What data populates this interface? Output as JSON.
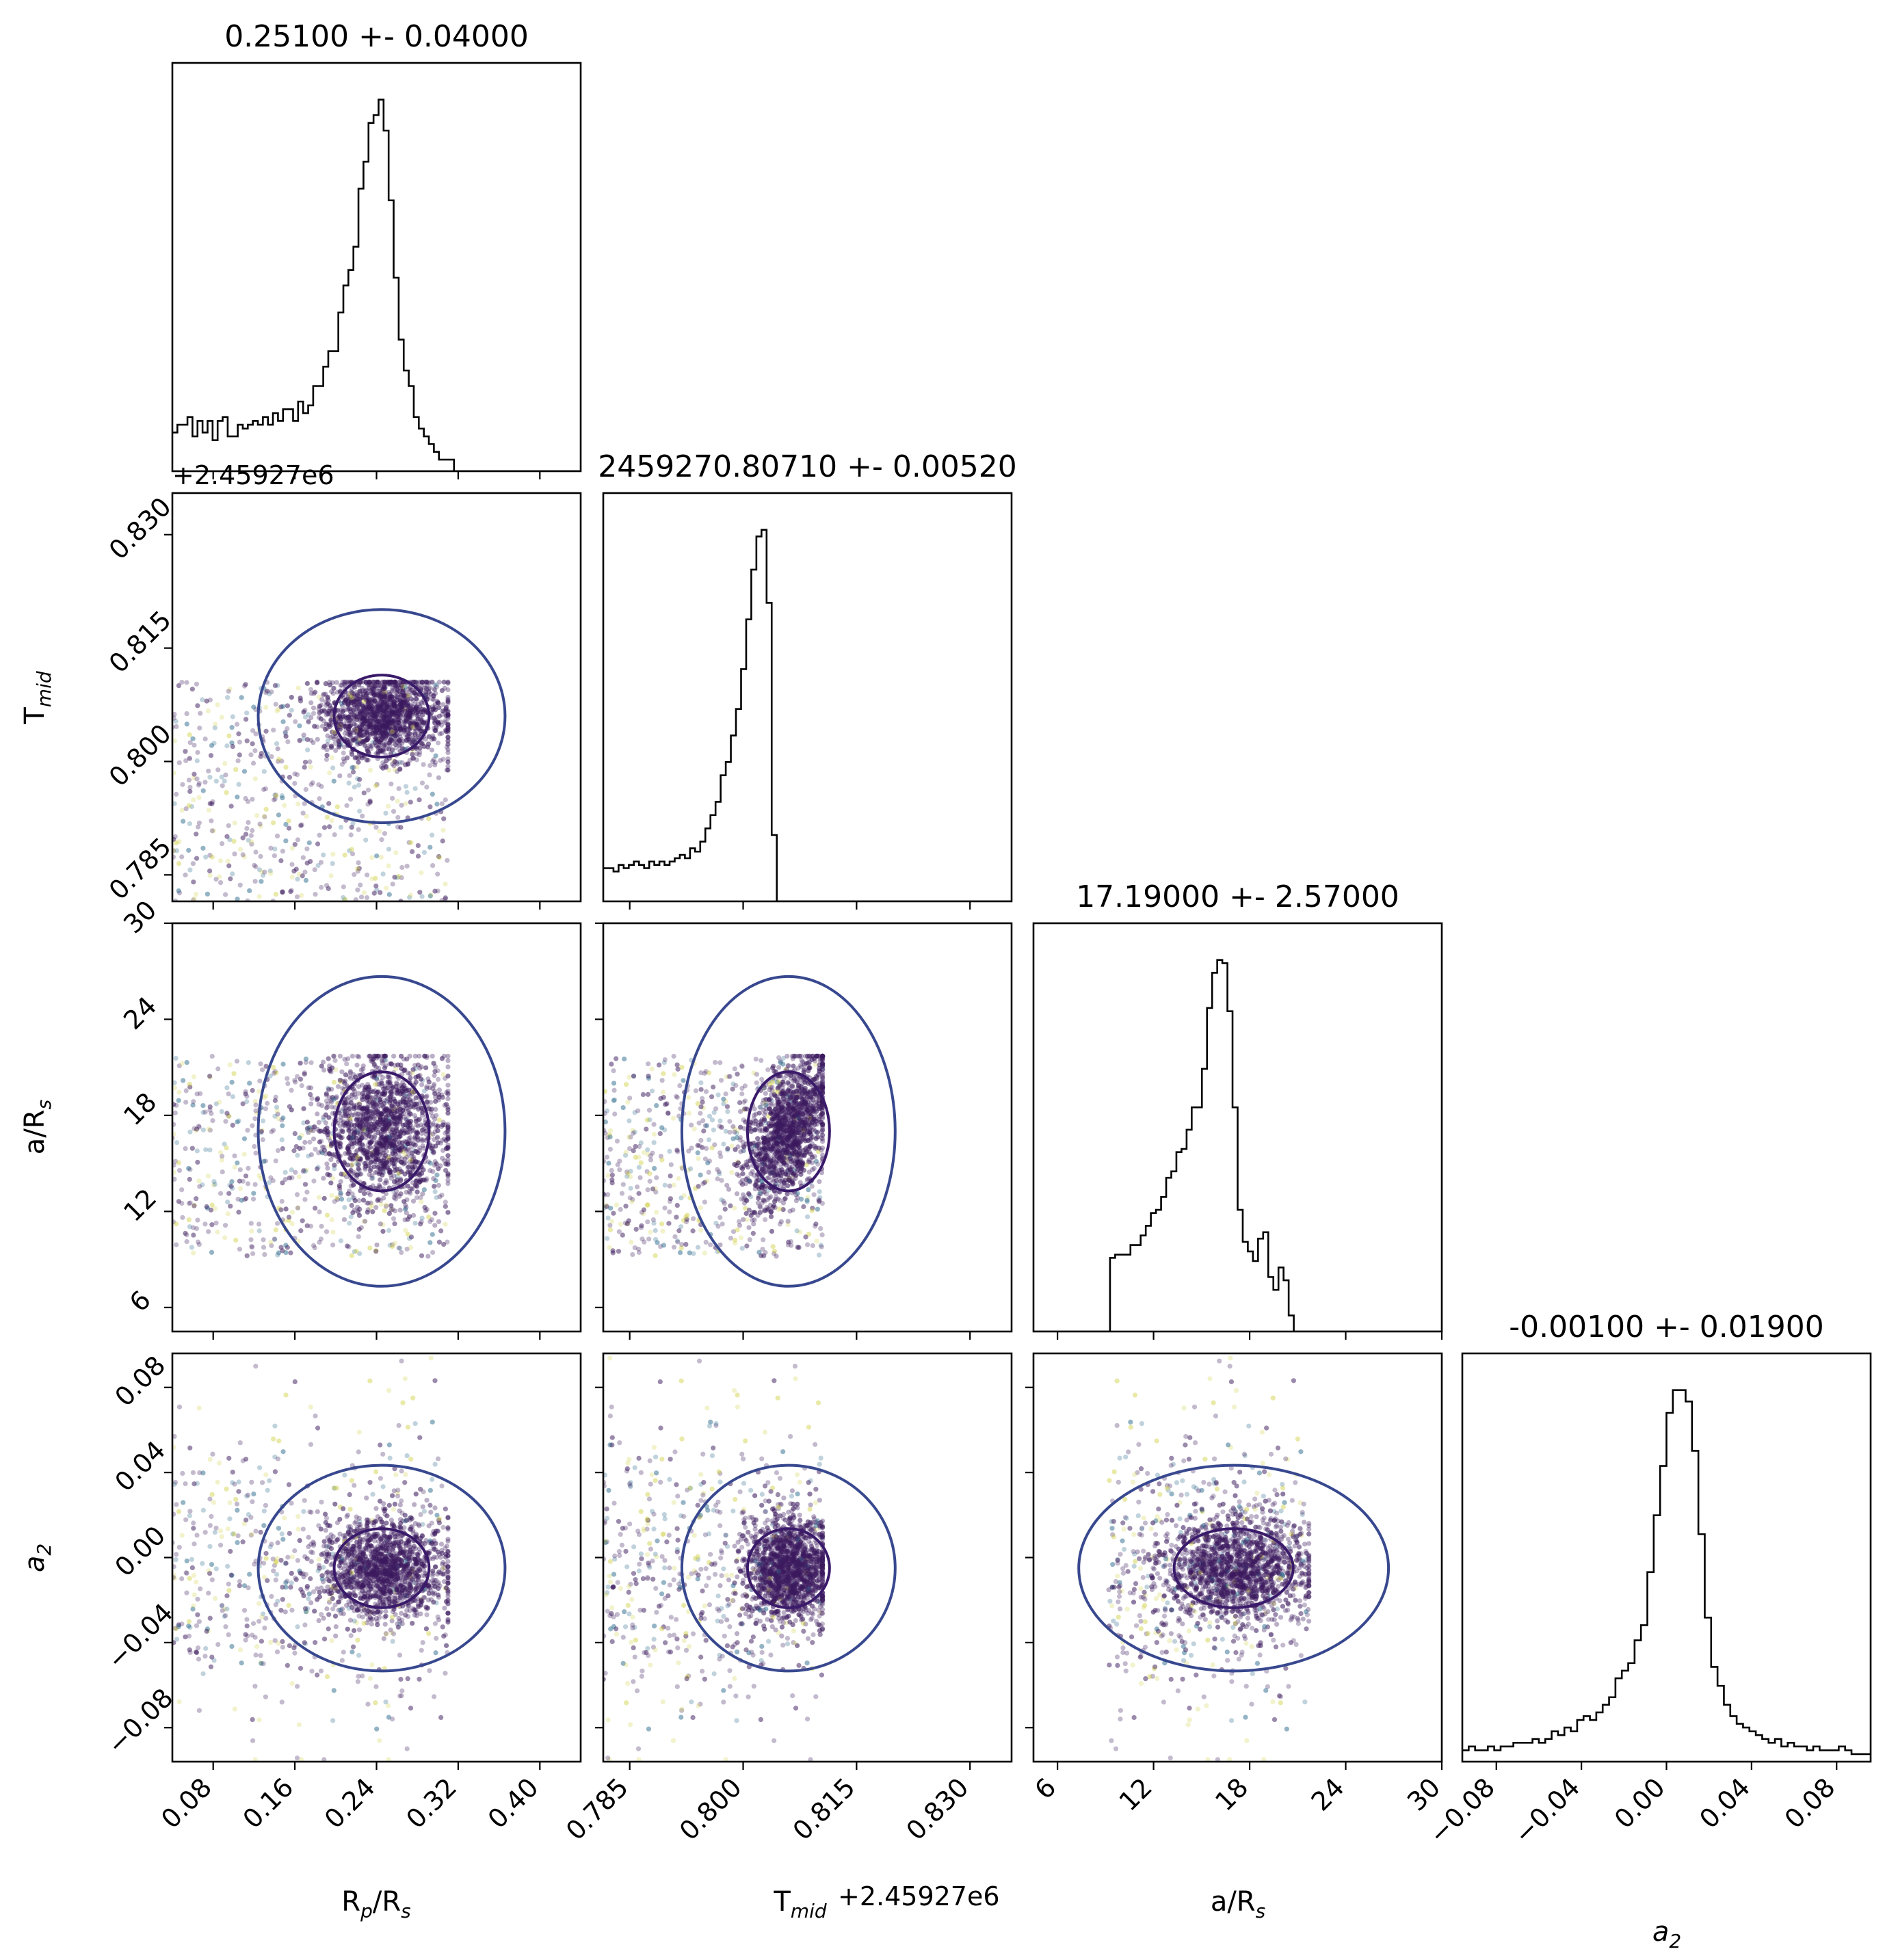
{
  "figure": {
    "type": "corner-plot",
    "offset_label": "+2.45927e6"
  },
  "chart_data": {
    "type": "corner",
    "parameters": [
      {
        "key": "rp",
        "label_main": "R",
        "label_sub": "p",
        "label_tail": "/R",
        "label_sub2": "s",
        "title": "0.25100 +- 0.04000",
        "range": [
          0.04,
          0.44
        ],
        "ticks": [
          0.08,
          0.16,
          0.24,
          0.32,
          0.4
        ],
        "tick_labels": [
          "0.08",
          "0.16",
          "0.24",
          "0.32",
          "0.40"
        ],
        "data_range": [
          0.04,
          0.31
        ]
      },
      {
        "key": "tmid",
        "label_main": "T",
        "label_sub": "mid",
        "label_tail": "",
        "label_sub2": "",
        "title": "2459270.80710 +- 0.00520",
        "range": [
          0.7815,
          0.8355
        ],
        "ticks": [
          0.785,
          0.8,
          0.815,
          0.83
        ],
        "tick_labels": [
          "0.785",
          "0.800",
          "0.815",
          "0.830"
        ],
        "offset": "+2.45927e6",
        "data_range": [
          0.7815,
          0.8105
        ]
      },
      {
        "key": "ars",
        "label_main": "a/R",
        "label_sub": "s",
        "label_tail": "",
        "label_sub2": "",
        "title": "17.19000 +- 2.57000",
        "range": [
          4.5,
          30
        ],
        "ticks": [
          6,
          12,
          18,
          24,
          30
        ],
        "tick_labels": [
          "6",
          "12",
          "18",
          "24",
          "30"
        ],
        "data_range": [
          9.2,
          21.7
        ]
      },
      {
        "key": "a2",
        "label_main": "a",
        "label_sub": "2",
        "label_tail": "",
        "label_sub2": "",
        "italic": true,
        "title": "-0.00100 +- 0.01900",
        "range": [
          -0.096,
          0.096
        ],
        "ticks": [
          -0.08,
          -0.04,
          0.0,
          0.04,
          0.08
        ],
        "tick_labels": [
          "−0.08",
          "−0.04",
          "0.00",
          "0.04",
          "0.08"
        ],
        "data_range": [
          -0.096,
          0.096
        ]
      }
    ],
    "histograms": [
      {
        "param": "rp",
        "bins_edges": [
          0.04,
          0.444
        ],
        "counts": [
          10,
          12,
          12,
          14,
          9,
          13,
          10,
          13,
          8,
          13,
          14,
          9,
          9,
          12,
          11,
          12,
          13,
          12,
          14,
          12,
          15,
          13,
          16,
          16,
          13,
          18,
          15,
          17,
          22,
          22,
          27,
          31,
          31,
          41,
          48,
          52,
          58,
          73,
          80,
          90,
          92,
          96,
          88,
          70,
          50,
          34,
          26,
          22,
          14,
          11,
          9,
          7,
          5,
          3,
          3,
          3,
          0,
          0,
          0,
          0,
          0,
          0,
          0,
          0,
          0,
          0,
          0,
          0,
          0,
          0,
          0,
          0,
          0,
          0,
          0,
          0,
          0,
          0,
          0,
          0,
          0,
          0
        ]
      },
      {
        "param": "tmid",
        "bins_edges": [
          0.7815,
          0.8355
        ],
        "counts": [
          10,
          10,
          9,
          11,
          10,
          11,
          12,
          11,
          10,
          12,
          11,
          12,
          11,
          12,
          13,
          14,
          13,
          16,
          15,
          18,
          22,
          26,
          30,
          38,
          42,
          50,
          58,
          70,
          85,
          100,
          110,
          112,
          90,
          20,
          0,
          0,
          0,
          0,
          0,
          0,
          0,
          0,
          0,
          0,
          0,
          0,
          0,
          0,
          0,
          0,
          0,
          0,
          0,
          0,
          0,
          0,
          0,
          0,
          0,
          0,
          0,
          0,
          0,
          0,
          0,
          0,
          0,
          0,
          0,
          0,
          0,
          0,
          0,
          0,
          0,
          0,
          0,
          0,
          0,
          0
        ]
      },
      {
        "param": "ars",
        "bins_edges": [
          4.5,
          30
        ],
        "counts": [
          0,
          0,
          0,
          0,
          0,
          0,
          0,
          0,
          0,
          0,
          0,
          0,
          0,
          0,
          0,
          23,
          24,
          24,
          24,
          27,
          27,
          30,
          33,
          37,
          38,
          42,
          48,
          50,
          56,
          57,
          63,
          70,
          70,
          82,
          101,
          112,
          116,
          115,
          100,
          70,
          38,
          28,
          25,
          22,
          29,
          31,
          17,
          13,
          20,
          16,
          5,
          0,
          0,
          0,
          0,
          0,
          0,
          0,
          0,
          0,
          0,
          0,
          0,
          0,
          0,
          0,
          0,
          0,
          0,
          0,
          0,
          0,
          0,
          0,
          0,
          0,
          0,
          0,
          0,
          0
        ]
      },
      {
        "param": "a2",
        "bins_edges": [
          -0.096,
          0.096
        ],
        "counts": [
          3,
          4,
          3,
          3,
          4,
          3,
          4,
          4,
          5,
          5,
          5,
          6,
          5,
          6,
          8,
          7,
          9,
          8,
          11,
          12,
          11,
          13,
          15,
          17,
          22,
          24,
          26,
          32,
          36,
          50,
          65,
          78,
          92,
          98,
          98,
          95,
          82,
          60,
          38,
          25,
          20,
          15,
          12,
          10,
          9,
          8,
          7,
          6,
          5,
          6,
          4,
          5,
          4,
          4,
          3,
          4,
          3,
          3,
          3,
          4,
          3,
          2,
          2,
          2
        ]
      }
    ],
    "contour_levels": [
      "inner",
      "outer"
    ],
    "colors": {
      "inner": "#3a1a6a",
      "outer": "#38488f",
      "scatter_dense": "#3b1a5e",
      "scatter_mid": "#2d6e8e",
      "scatter_light": "#d4d455",
      "axes": "#000000",
      "hist": "#000000"
    }
  }
}
